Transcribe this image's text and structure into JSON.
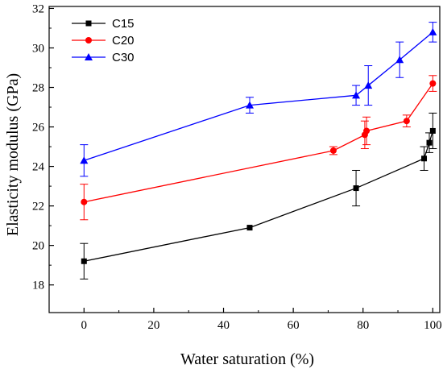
{
  "chart_data": {
    "type": "line",
    "xlabel": "Water saturation (%)",
    "ylabel": "Elasticity modulus (GPa)",
    "xlim": [
      -10,
      102
    ],
    "ylim": [
      16.6,
      32.1
    ],
    "xticks": [
      0,
      20,
      40,
      60,
      80,
      100
    ],
    "yticks": [
      18,
      20,
      22,
      24,
      26,
      28,
      30,
      32
    ],
    "grid": false,
    "legend": "top-left",
    "series": [
      {
        "name": "C15",
        "color": "#000000",
        "marker": "square",
        "points": [
          {
            "x": 0,
            "y": 19.2,
            "err": 0.9
          },
          {
            "x": 47.5,
            "y": 20.9,
            "err": 0
          },
          {
            "x": 78,
            "y": 22.9,
            "err": 0.9
          },
          {
            "x": 97.5,
            "y": 24.4,
            "err": 0.6
          },
          {
            "x": 99,
            "y": 25.2,
            "err": 0.5
          },
          {
            "x": 100,
            "y": 25.8,
            "err": 0.9
          }
        ]
      },
      {
        "name": "C20",
        "color": "#ff0000",
        "marker": "circle",
        "points": [
          {
            "x": 0,
            "y": 22.2,
            "err": 0.9
          },
          {
            "x": 71.5,
            "y": 24.8,
            "err": 0.2
          },
          {
            "x": 80.5,
            "y": 25.6,
            "err": 0.7
          },
          {
            "x": 81,
            "y": 25.8,
            "err": 0.7
          },
          {
            "x": 92.5,
            "y": 26.3,
            "err": 0.3
          },
          {
            "x": 100,
            "y": 28.2,
            "err": 0.4
          }
        ]
      },
      {
        "name": "C30",
        "color": "#0000ff",
        "marker": "triangle",
        "points": [
          {
            "x": 0,
            "y": 24.3,
            "err": 0.8
          },
          {
            "x": 47.5,
            "y": 27.1,
            "err": 0.4
          },
          {
            "x": 78,
            "y": 27.6,
            "err": 0.5
          },
          {
            "x": 81.5,
            "y": 28.1,
            "err": 1.0
          },
          {
            "x": 90.5,
            "y": 29.4,
            "err": 0.9
          },
          {
            "x": 100,
            "y": 30.8,
            "err": 0.5
          }
        ]
      }
    ]
  }
}
